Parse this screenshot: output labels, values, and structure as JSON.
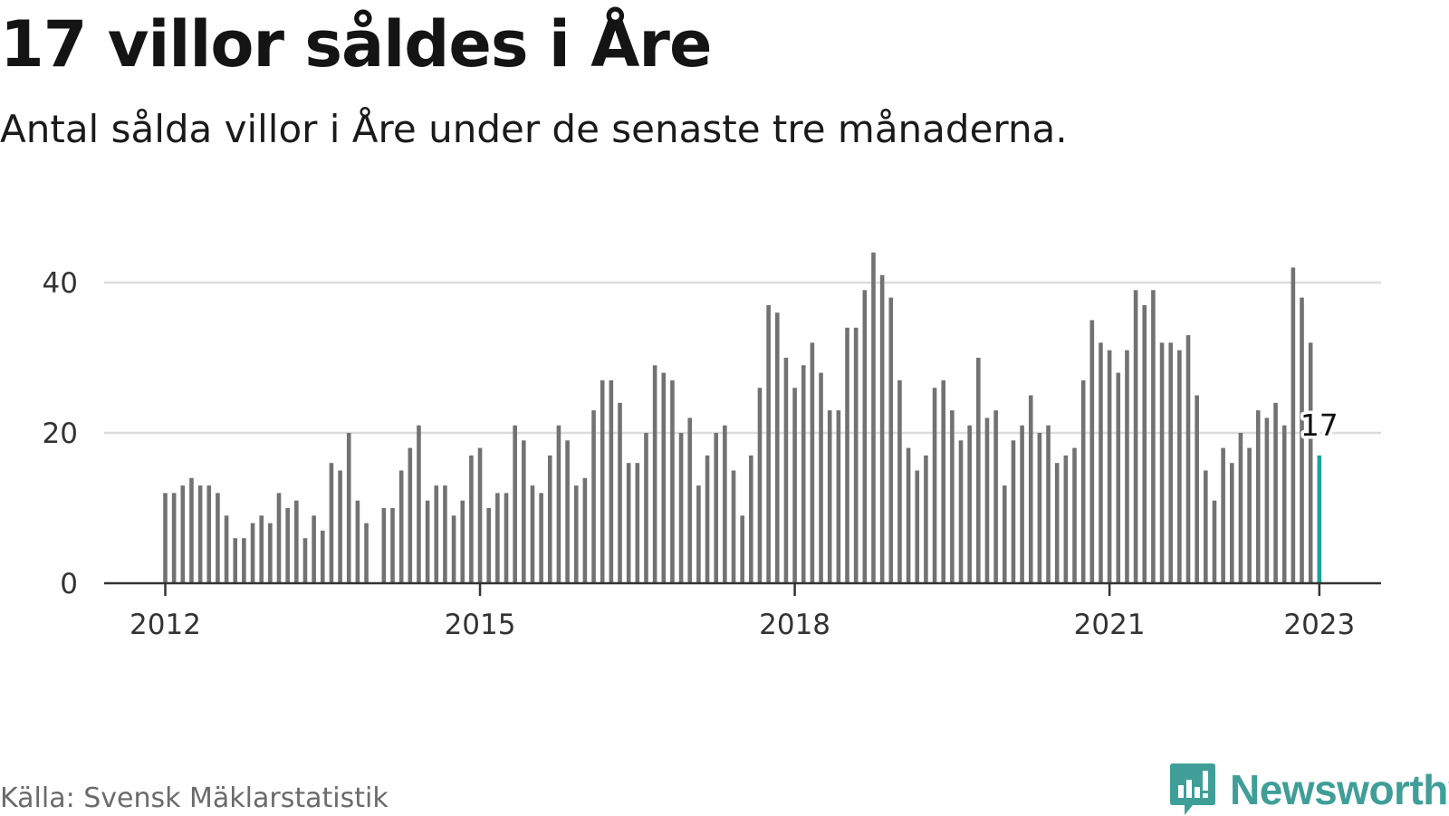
{
  "title": "17 villor såldes i Åre",
  "subtitle": "Antal sålda villor i Åre under de senaste tre månaderna.",
  "source": "Källa: Svensk Mäklarstatistik",
  "brand": {
    "name": "Newsworthy",
    "icon": "newsworthy-logo-icon",
    "color": "#3f9f98"
  },
  "chart_data": {
    "type": "bar",
    "x_start": "2012-01",
    "x_end": "2023-01",
    "x_frequency": "monthly",
    "values": [
      12,
      12,
      13,
      14,
      13,
      13,
      12,
      9,
      6,
      6,
      8,
      9,
      8,
      12,
      10,
      11,
      6,
      9,
      7,
      16,
      15,
      20,
      11,
      8,
      null,
      10,
      10,
      15,
      18,
      21,
      11,
      13,
      13,
      9,
      11,
      17,
      18,
      10,
      12,
      12,
      21,
      19,
      13,
      12,
      17,
      21,
      19,
      13,
      14,
      23,
      27,
      27,
      24,
      16,
      16,
      20,
      29,
      28,
      27,
      20,
      22,
      13,
      17,
      20,
      21,
      15,
      9,
      17,
      26,
      37,
      36,
      30,
      26,
      29,
      32,
      28,
      23,
      23,
      34,
      34,
      39,
      44,
      41,
      38,
      27,
      18,
      15,
      17,
      26,
      27,
      23,
      19,
      21,
      30,
      22,
      23,
      13,
      19,
      21,
      25,
      20,
      21,
      16,
      17,
      18,
      27,
      35,
      32,
      31,
      28,
      31,
      39,
      37,
      39,
      32,
      32,
      31,
      33,
      25,
      15,
      11,
      18,
      16,
      20,
      18,
      23,
      22,
      24,
      21,
      42,
      38,
      32,
      17
    ],
    "highlight": {
      "x": "2023-01",
      "value": 17,
      "label": "17"
    },
    "x_ticks": [
      {
        "x": "2012-01",
        "label": "2012"
      },
      {
        "x": "2015-01",
        "label": "2015"
      },
      {
        "x": "2018-01",
        "label": "2018"
      },
      {
        "x": "2021-01",
        "label": "2021"
      },
      {
        "x": "2023-01",
        "label": "2023"
      }
    ],
    "y_ticks": [
      0,
      20,
      40
    ],
    "ylim": [
      0,
      44
    ],
    "grid": true,
    "colors": {
      "bar": "#727272",
      "highlight": "#1aa39a",
      "grid": "#dcdcdc",
      "axis": "#333333",
      "tick_text": "#333333"
    }
  }
}
